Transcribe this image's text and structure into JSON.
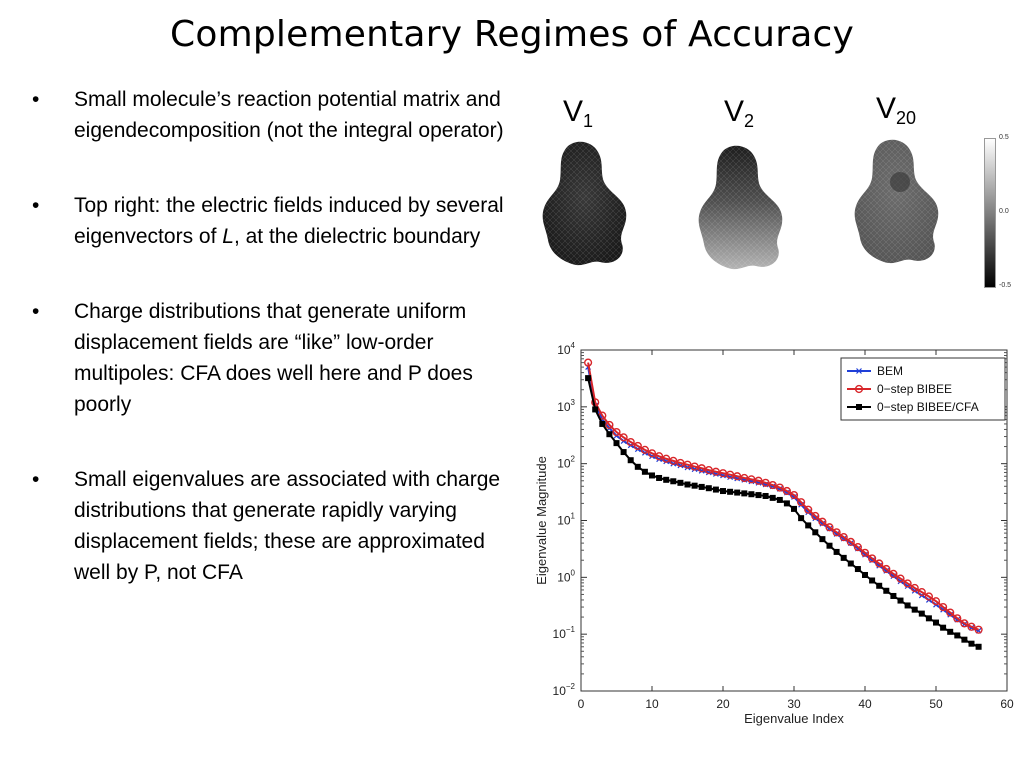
{
  "slide": {
    "title": "Complementary Regimes of Accuracy",
    "bullets": [
      {
        "marker": "•",
        "text": "Small molecule’s reaction potential matrix and eigendecomposition (not the integral operator)"
      },
      {
        "marker": "•",
        "text_pre": "Top right: the electric fields induced by several eigenvectors of ",
        "text_em": "L",
        "text_post": ", at the dielectric boundary"
      },
      {
        "marker": "•",
        "text": "Charge distributions that generate uniform displacement fields are “like” low-order multipoles: CFA does well here and P does poorly"
      },
      {
        "marker": "•",
        "text": "Small eigenvalues are associated with charge distributions that generate rapidly varying displacement fields; these are approximated well by P, not CFA"
      }
    ]
  },
  "fields": {
    "labels": [
      {
        "main": "V",
        "sub": "1"
      },
      {
        "main": "V",
        "sub": "2"
      },
      {
        "main": "V",
        "sub": "20"
      }
    ],
    "colorbar_ticks": [
      "0.5",
      "0.0",
      "-0.5"
    ]
  },
  "chart_data": {
    "type": "line",
    "xlabel": "Eigenvalue Index",
    "ylabel": "Eigenvalue Magnitude",
    "xlim": [
      0,
      60
    ],
    "ylim": [
      0.01,
      10000
    ],
    "yscale": "log",
    "xticks": [
      "0",
      "10",
      "20",
      "30",
      "40",
      "50",
      "60"
    ],
    "yticks": [
      {
        "base": "10",
        "exp": "−2",
        "value": 0.01
      },
      {
        "base": "10",
        "exp": "−1",
        "value": 0.1
      },
      {
        "base": "10",
        "exp": "0",
        "value": 1
      },
      {
        "base": "10",
        "exp": "1",
        "value": 10
      },
      {
        "base": "10",
        "exp": "2",
        "value": 100
      },
      {
        "base": "10",
        "exp": "3",
        "value": 1000
      },
      {
        "base": "10",
        "exp": "4",
        "value": 10000
      }
    ],
    "legend_position": "top-right",
    "x": [
      1,
      2,
      3,
      4,
      5,
      6,
      7,
      8,
      9,
      10,
      11,
      12,
      13,
      14,
      15,
      16,
      17,
      18,
      19,
      20,
      21,
      22,
      23,
      24,
      25,
      26,
      27,
      28,
      29,
      30,
      31,
      32,
      33,
      34,
      35,
      36,
      37,
      38,
      39,
      40,
      41,
      42,
      43,
      44,
      45,
      46,
      47,
      48,
      49,
      50,
      51,
      52,
      53,
      54,
      55,
      56
    ],
    "series": [
      {
        "name": "BEM",
        "color": "#1f3fd8",
        "marker": "x",
        "values": [
          5000,
          1050,
          600,
          420,
          310,
          250,
          210,
          180,
          155,
          135,
          120,
          110,
          100,
          93,
          86,
          80,
          75,
          70,
          66,
          62,
          58,
          55,
          52,
          49,
          46,
          43,
          40,
          36,
          31,
          26,
          19,
          14,
          11,
          8.8,
          7.2,
          5.8,
          4.8,
          4.0,
          3.2,
          2.5,
          2.0,
          1.6,
          1.3,
          1.05,
          0.85,
          0.7,
          0.58,
          0.48,
          0.4,
          0.33,
          0.27,
          0.22,
          0.18,
          0.15,
          0.13,
          0.115
        ]
      },
      {
        "name": "0−step BIBEE",
        "color": "#d8262a",
        "marker": "o",
        "values": [
          6000,
          1200,
          700,
          480,
          360,
          290,
          240,
          205,
          175,
          152,
          135,
          122,
          112,
          103,
          96,
          89,
          83,
          77,
          72,
          68,
          64,
          60,
          56,
          53,
          50,
          46,
          42,
          38,
          33,
          28,
          21,
          15.5,
          12,
          9.5,
          7.6,
          6.2,
          5.1,
          4.2,
          3.4,
          2.7,
          2.15,
          1.75,
          1.4,
          1.15,
          0.95,
          0.78,
          0.65,
          0.55,
          0.46,
          0.38,
          0.3,
          0.24,
          0.19,
          0.155,
          0.135,
          0.12
        ]
      },
      {
        "name": "0−step BIBEE/CFA",
        "color": "#000000",
        "marker": "s",
        "values": [
          3200,
          900,
          500,
          330,
          230,
          160,
          115,
          88,
          72,
          62,
          56,
          52,
          49,
          46,
          43,
          41,
          39,
          37,
          35,
          33,
          32,
          31,
          30,
          29,
          28,
          27,
          25,
          23,
          20,
          16,
          11,
          8.2,
          6.2,
          4.7,
          3.6,
          2.8,
          2.2,
          1.75,
          1.4,
          1.1,
          0.88,
          0.71,
          0.58,
          0.47,
          0.39,
          0.32,
          0.27,
          0.23,
          0.19,
          0.16,
          0.13,
          0.11,
          0.095,
          0.08,
          0.068,
          0.06
        ]
      }
    ]
  }
}
